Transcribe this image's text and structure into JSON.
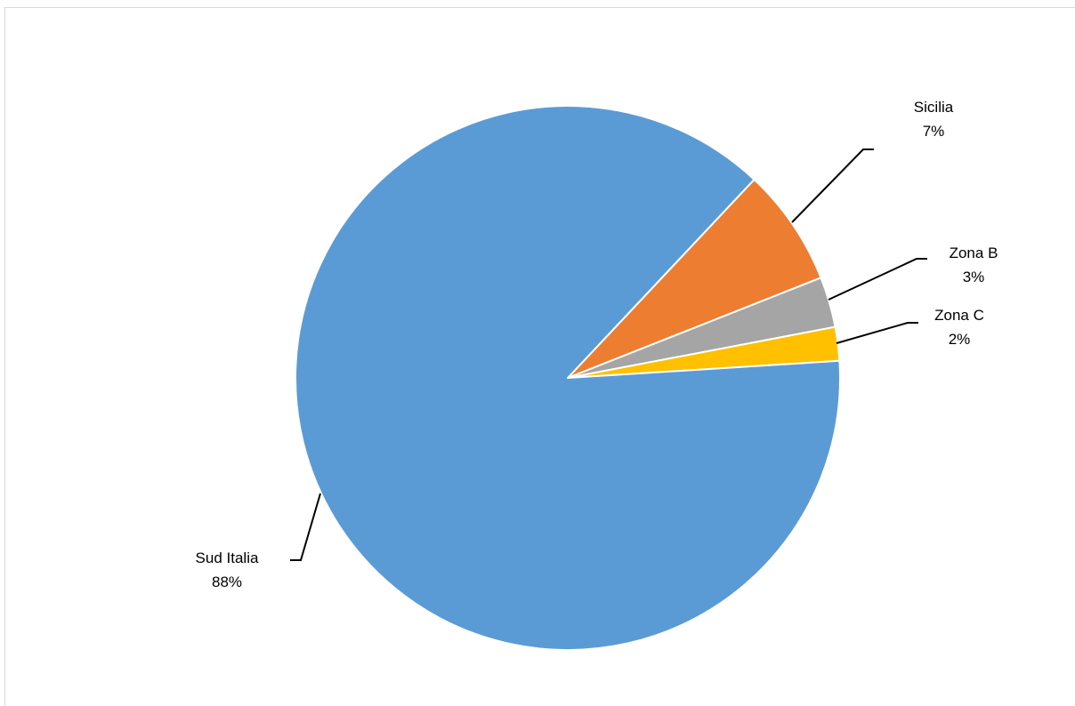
{
  "chart_data": {
    "type": "pie",
    "title": "",
    "slices": [
      {
        "label": "Sicilia",
        "value": 7,
        "value_label": "7%",
        "color": "#ED7D31"
      },
      {
        "label": "Zona B",
        "value": 3,
        "value_label": "3%",
        "color": "#A5A5A5"
      },
      {
        "label": "Zona C",
        "value": 2,
        "value_label": "2%",
        "color": "#FFC000"
      },
      {
        "label": "Sud Italia",
        "value": 88,
        "value_label": "88%",
        "color": "#5B9BD5"
      }
    ],
    "legend": "none",
    "data_labels": "outside-with-leader-lines"
  }
}
